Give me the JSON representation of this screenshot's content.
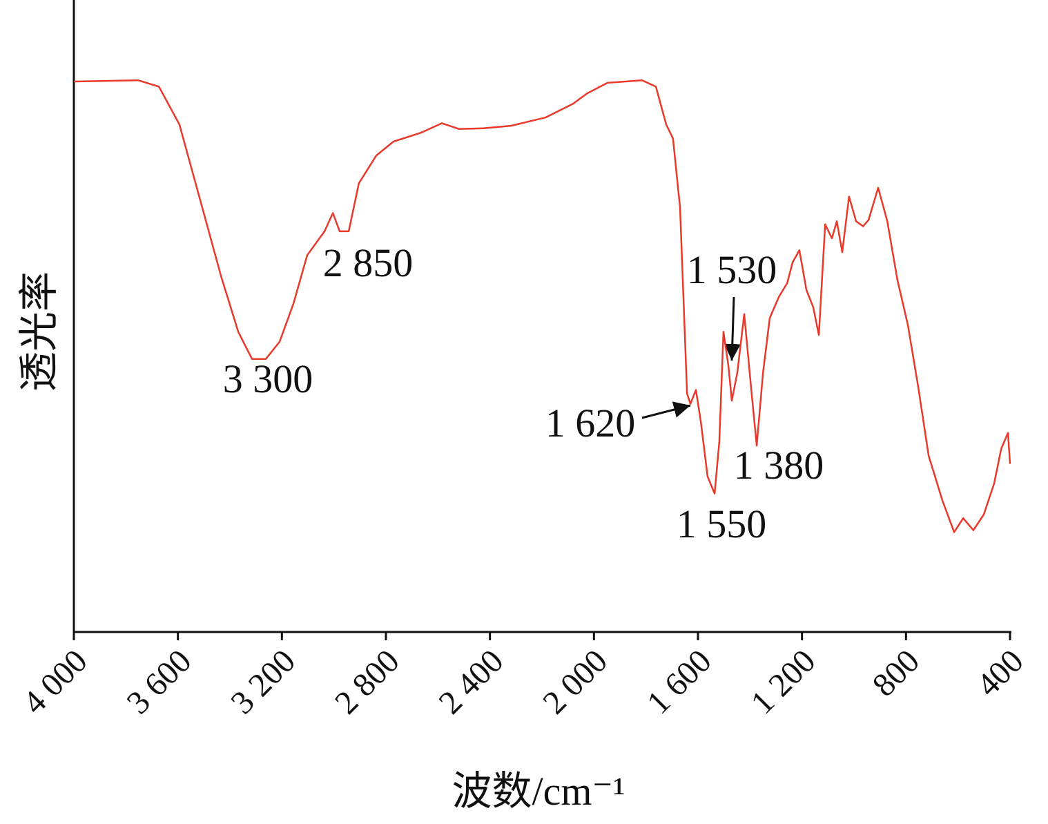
{
  "chart_data": {
    "type": "line",
    "xlabel": "波数/cm⁻¹",
    "ylabel": "透光率",
    "x": [
      4000,
      3753,
      3673,
      3594,
      3514,
      3434,
      3368,
      3315,
      3262,
      3209,
      3156,
      3103,
      3036,
      3004,
      2978,
      2943,
      2904,
      2837,
      2771,
      2665,
      2585,
      2519,
      2426,
      2319,
      2187,
      2080,
      2027,
      1948,
      1815,
      1762,
      1722,
      1696,
      1669,
      1642,
      1629,
      1608,
      1589,
      1563,
      1536,
      1518,
      1502,
      1483,
      1470,
      1449,
      1422,
      1396,
      1374,
      1350,
      1324,
      1289,
      1257,
      1236,
      1210,
      1183,
      1157,
      1135,
      1111,
      1085,
      1066,
      1045,
      1019,
      992,
      965,
      944,
      907,
      872,
      833,
      793,
      753,
      713,
      660,
      615,
      580,
      541,
      501,
      461,
      434,
      408,
      400
    ],
    "series": [
      {
        "color": "#e8392b",
        "values": [
          87.1,
          87.3,
          86.3,
          80.3,
          68.3,
          56.3,
          47.5,
          43.2,
          43.2,
          45.9,
          51.9,
          59.6,
          63.4,
          66.3,
          63.4,
          63.4,
          71.0,
          75.4,
          77.6,
          79.0,
          80.5,
          79.6,
          79.7,
          80.1,
          81.4,
          83.6,
          85.2,
          86.9,
          87.3,
          86.3,
          80.3,
          78.1,
          67.2,
          37.7,
          36.1,
          38.3,
          33.3,
          24.6,
          21.9,
          30.1,
          47.5,
          42.1,
          36.6,
          41.0,
          50.3,
          38.8,
          29.5,
          41.0,
          49.7,
          53.0,
          55.2,
          58.5,
          60.4,
          54.1,
          51.4,
          47.0,
          64.5,
          62.3,
          65.0,
          60.1,
          68.9,
          65.0,
          64.2,
          65.2,
          70.3,
          65.0,
          55.7,
          48.6,
          38.8,
          27.9,
          20.8,
          15.8,
          18.0,
          16.1,
          18.6,
          23.5,
          29.0,
          31.5,
          26.6
        ]
      }
    ],
    "xlim": [
      4000,
      400
    ],
    "xticks": [
      {
        "value": 4000,
        "label": "4 000"
      },
      {
        "value": 3600,
        "label": "3 600"
      },
      {
        "value": 3200,
        "label": "3 200"
      },
      {
        "value": 2800,
        "label": "2 800"
      },
      {
        "value": 2400,
        "label": "2 400"
      },
      {
        "value": 2000,
        "label": "2 000"
      },
      {
        "value": 1600,
        "label": "1 600"
      },
      {
        "value": 1200,
        "label": "1 200"
      },
      800,
      400
    ],
    "ylim": [
      0,
      100
    ],
    "annotations": [
      "3 300",
      "2 850",
      "1 620",
      "1 530",
      "1 550",
      "1 380"
    ]
  }
}
